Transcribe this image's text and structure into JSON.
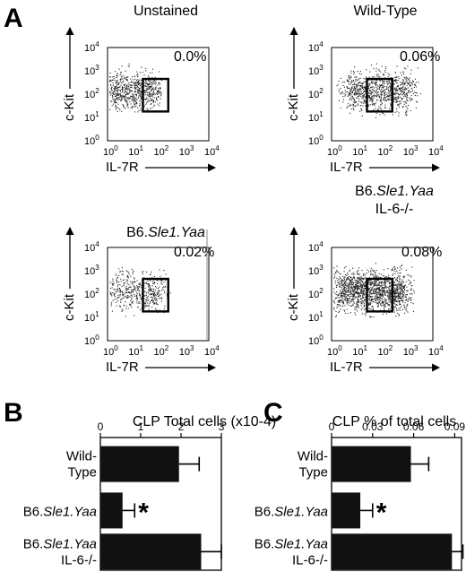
{
  "panel_letters": {
    "a": "A",
    "b": "B",
    "c": "C"
  },
  "flow": {
    "x_label": "IL-7R",
    "y_label": "c-Kit",
    "tick_base": "10",
    "tick_exponents": [
      "0",
      "1",
      "2",
      "3",
      "4"
    ],
    "plots": [
      {
        "title": "Unstained",
        "title_sub": "",
        "gate_percent": "0.0%"
      },
      {
        "title": "Wild-Type",
        "title_sub": "",
        "gate_percent": "0.06%"
      },
      {
        "title_prefix": "B6.",
        "title_italic": "Sle1.Yaa",
        "title_sub": "",
        "gate_percent": "0.02%"
      },
      {
        "title_prefix": "B6.",
        "title_italic": "Sle1.Yaa",
        "title_sub": "IL-6-/-",
        "gate_percent": "0.08%"
      }
    ]
  },
  "bars": {
    "categories": [
      {
        "line1": "Wild-",
        "line2": "Type"
      },
      {
        "line1_prefix": "B6.",
        "line1_italic": "Sle1.Yaa",
        "line2": ""
      },
      {
        "line1_prefix": "B6.",
        "line1_italic": "Sle1.Yaa",
        "line2": "IL-6-/-"
      }
    ],
    "significance_mark": "*"
  },
  "chart_data": [
    {
      "type": "scatter",
      "title": "Unstained",
      "xlabel": "IL-7R",
      "ylabel": "c-Kit",
      "xscale": "log",
      "yscale": "log",
      "xlim": [
        1,
        10000
      ],
      "ylim": [
        1,
        10000
      ],
      "gate": {
        "x": [
          25,
          250
        ],
        "y": [
          18,
          450
        ]
      },
      "annotation": "0.0%"
    },
    {
      "type": "scatter",
      "title": "Wild-Type",
      "xlabel": "IL-7R",
      "ylabel": "c-Kit",
      "xscale": "log",
      "yscale": "log",
      "xlim": [
        1,
        10000
      ],
      "ylim": [
        1,
        10000
      ],
      "gate": {
        "x": [
          25,
          250
        ],
        "y": [
          18,
          450
        ]
      },
      "annotation": "0.06%"
    },
    {
      "type": "scatter",
      "title": "B6.Sle1.Yaa",
      "xlabel": "IL-7R",
      "ylabel": "c-Kit",
      "xscale": "log",
      "yscale": "log",
      "xlim": [
        1,
        10000
      ],
      "ylim": [
        1,
        10000
      ],
      "gate": {
        "x": [
          25,
          250
        ],
        "y": [
          18,
          450
        ]
      },
      "annotation": "0.02%"
    },
    {
      "type": "scatter",
      "title": "B6.Sle1.Yaa IL-6-/-",
      "xlabel": "IL-7R",
      "ylabel": "c-Kit",
      "xscale": "log",
      "yscale": "log",
      "xlim": [
        1,
        10000
      ],
      "ylim": [
        1,
        10000
      ],
      "gate": {
        "x": [
          25,
          250
        ],
        "y": [
          18,
          450
        ]
      },
      "annotation": "0.08%"
    },
    {
      "type": "bar",
      "orientation": "horizontal",
      "title": "CLP Total cells (x10-4)",
      "categories": [
        "Wild-Type",
        "B6.Sle1.Yaa",
        "B6.Sle1.Yaa IL-6-/-"
      ],
      "values": [
        1.95,
        0.55,
        2.5
      ],
      "errors": [
        0.5,
        0.3,
        0.5
      ],
      "xlim": [
        0,
        3
      ],
      "xticks": [
        "0",
        "1",
        "2",
        "3"
      ],
      "annotations": [
        "",
        "*",
        ""
      ]
    },
    {
      "type": "bar",
      "orientation": "horizontal",
      "title": "CLP % of total cells",
      "categories": [
        "Wild-Type",
        "B6.Sle1.Yaa",
        "B6.Sle1.Yaa IL-6-/-"
      ],
      "values": [
        0.058,
        0.021,
        0.088
      ],
      "errors": [
        0.013,
        0.009,
        0.008
      ],
      "xlim": [
        0,
        0.095
      ],
      "xticks": [
        "0",
        "0.03",
        "0.06",
        "0.09"
      ],
      "annotations": [
        "",
        "*",
        ""
      ]
    }
  ]
}
